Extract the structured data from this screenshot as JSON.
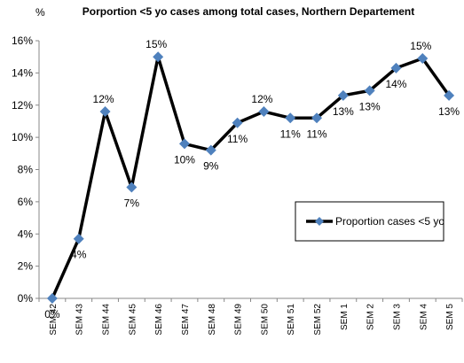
{
  "chart_data": {
    "type": "line",
    "title": "Porportion <5 yo cases among total cases, Northern Departement",
    "y_label": "%",
    "categories": [
      "SEM 42",
      "SEM 43",
      "SEM 44",
      "SEM 45",
      "SEM 46",
      "SEM 47",
      "SEM 48",
      "SEM 49",
      "SEM 50",
      "SEM 51",
      "SEM 52",
      "SEM 1",
      "SEM 2",
      "SEM 3",
      "SEM 4",
      "SEM 5"
    ],
    "series": [
      {
        "name": "Proportion cases <5 yo",
        "color": "#000000",
        "marker_color": "#4f81bd",
        "values": [
          0,
          3.7,
          11.6,
          6.9,
          15.0,
          9.6,
          9.2,
          10.9,
          11.6,
          11.2,
          11.2,
          12.6,
          12.9,
          14.3,
          14.9,
          12.6
        ],
        "value_labels": [
          "0%",
          "4%",
          "12%",
          "7%",
          "15%",
          "10%",
          "9%",
          "11%",
          "12%",
          "11%",
          "11%",
          "13%",
          "13%",
          "14%",
          "15%",
          "13%"
        ]
      }
    ],
    "ylim": [
      0,
      16
    ],
    "yticks": [
      {
        "value": 0,
        "label": "0%"
      },
      {
        "value": 2,
        "label": "2%"
      },
      {
        "value": 4,
        "label": "4%"
      },
      {
        "value": 6,
        "label": "6%"
      },
      {
        "value": 8,
        "label": "8%"
      },
      {
        "value": 10,
        "label": "10%"
      },
      {
        "value": 12,
        "label": "12%"
      },
      {
        "value": 14,
        "label": "14%"
      },
      {
        "value": 16,
        "label": "16%"
      }
    ],
    "legend": "right"
  }
}
